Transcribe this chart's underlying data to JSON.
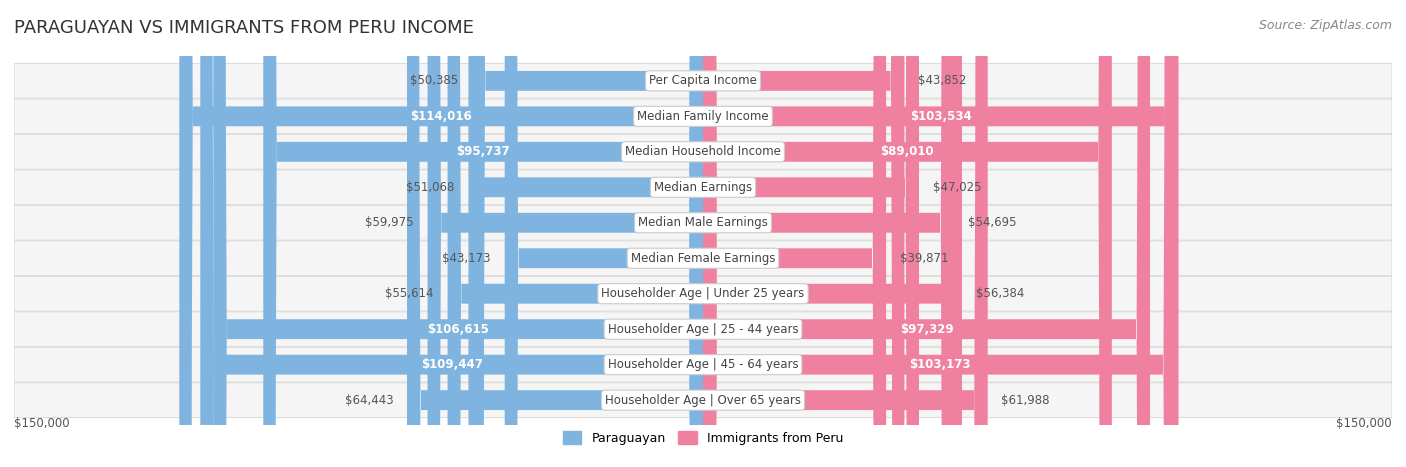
{
  "title": "PARAGUAYAN VS IMMIGRANTS FROM PERU INCOME",
  "source": "Source: ZipAtlas.com",
  "categories": [
    "Per Capita Income",
    "Median Family Income",
    "Median Household Income",
    "Median Earnings",
    "Median Male Earnings",
    "Median Female Earnings",
    "Householder Age | Under 25 years",
    "Householder Age | 25 - 44 years",
    "Householder Age | 45 - 64 years",
    "Householder Age | Over 65 years"
  ],
  "paraguayan_values": [
    50385,
    114016,
    95737,
    51068,
    59975,
    43173,
    55614,
    106615,
    109447,
    64443
  ],
  "peru_values": [
    43852,
    103534,
    89010,
    47025,
    54695,
    39871,
    56384,
    97329,
    103173,
    61988
  ],
  "paraguayan_color": "#7fb3e0",
  "peru_color": "#f080a0",
  "paraguayan_color_dark": "#5a9fd4",
  "peru_color_dark": "#e8607a",
  "bar_bg_color": "#f0f0f0",
  "row_bg_color": "#f5f5f5",
  "row_border_color": "#dddddd",
  "label_bg_color": "#ffffff",
  "axis_limit": 150000,
  "title_fontsize": 13,
  "source_fontsize": 9,
  "value_fontsize": 8.5,
  "category_fontsize": 8.5,
  "legend_fontsize": 9,
  "axis_label_fontsize": 8.5,
  "background_color": "#ffffff",
  "paraguayan_legend": "Paraguayan",
  "peru_legend": "Immigrants from Peru"
}
